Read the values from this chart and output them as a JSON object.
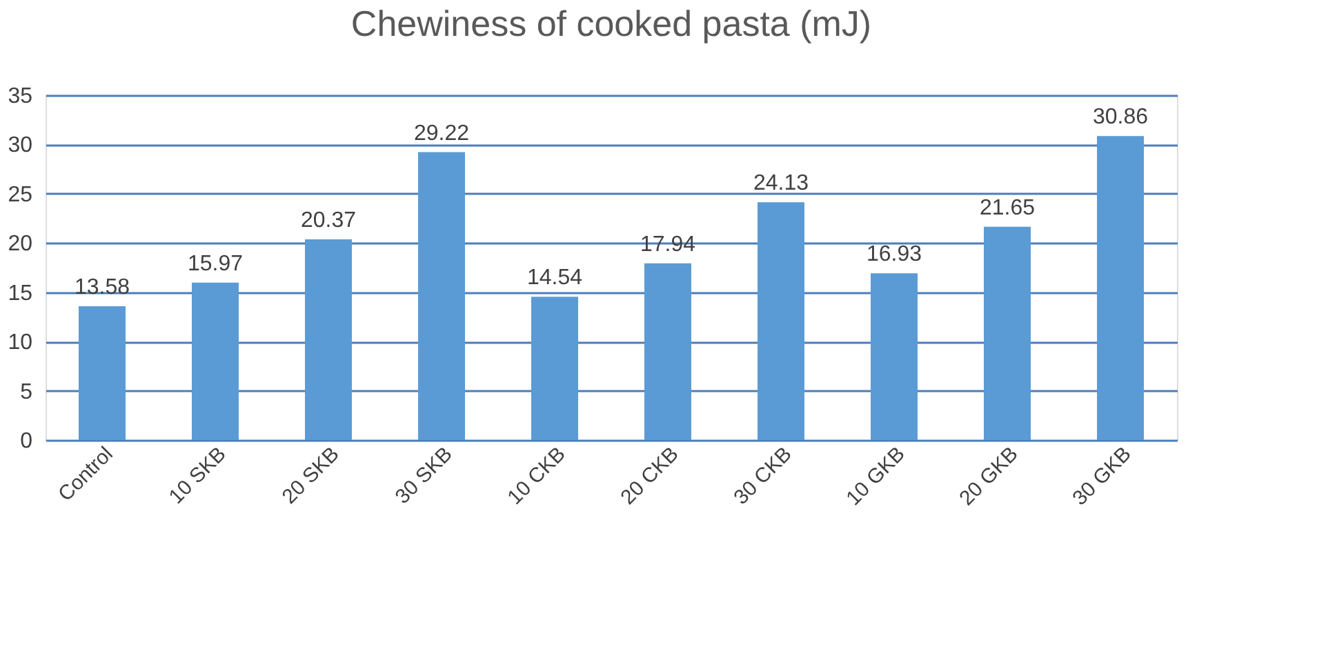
{
  "chart_data": {
    "type": "bar",
    "title": "Chewiness of cooked pasta (mJ)",
    "categories": [
      "Control",
      "10 SKB",
      "20 SKB",
      "30 SKB",
      "10 CKB",
      "20 CKB",
      "30 CKB",
      "10 GKB",
      "20 GKB",
      "30 GKB"
    ],
    "values": [
      13.58,
      15.97,
      20.37,
      29.22,
      14.54,
      17.94,
      24.13,
      16.93,
      21.65,
      30.86
    ],
    "color": "#5b9bd5",
    "ylim": [
      0,
      35
    ],
    "yticks": [
      0,
      5,
      10,
      15,
      20,
      25,
      30,
      35
    ],
    "grid": "y",
    "data_labels": true
  }
}
